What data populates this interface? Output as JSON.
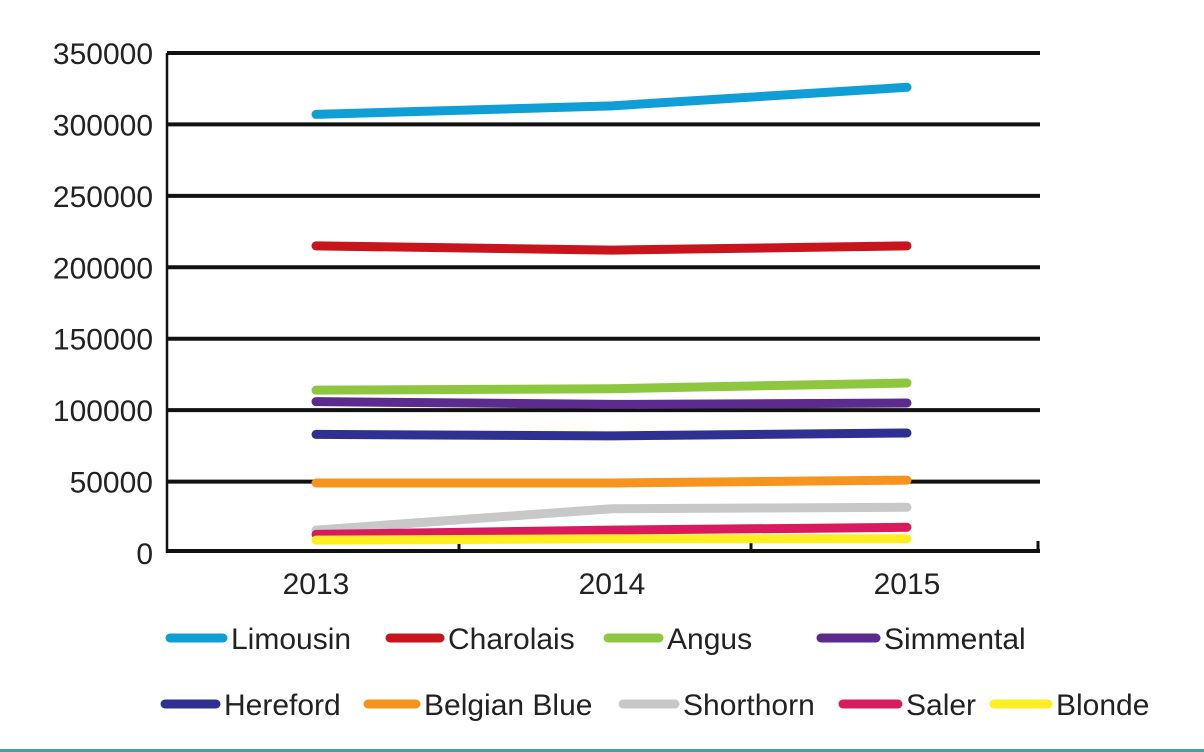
{
  "chart_data": {
    "type": "line",
    "title": "",
    "xlabel": "",
    "ylabel": "",
    "categories": [
      "2013",
      "2014",
      "2015"
    ],
    "ylim": [
      0,
      350000
    ],
    "yticks": [
      "0",
      "50000",
      "100000",
      "150000",
      "200000",
      "250000",
      "300000",
      "350000"
    ],
    "grid": true,
    "legend_position": "bottom",
    "series": [
      {
        "name": "Limousin",
        "color": "#0f9ed5",
        "values": [
          307000,
          313000,
          326000
        ]
      },
      {
        "name": "Charolais",
        "color": "#c8141d",
        "values": [
          215000,
          212000,
          215000
        ]
      },
      {
        "name": "Angus",
        "color": "#8dc63f",
        "values": [
          114000,
          115000,
          119000
        ]
      },
      {
        "name": "Simmental",
        "color": "#5b2c8e",
        "values": [
          106000,
          104000,
          105000
        ]
      },
      {
        "name": "Hereford",
        "color": "#2e3192",
        "values": [
          83000,
          82000,
          84000
        ]
      },
      {
        "name": "Belgian Blue",
        "color": "#f7941d",
        "values": [
          49000,
          49000,
          51000
        ]
      },
      {
        "name": "Shorthorn",
        "color": "#c8c8c8",
        "values": [
          16000,
          31000,
          32000
        ]
      },
      {
        "name": "Saler",
        "color": "#d91a5d",
        "values": [
          13000,
          16000,
          18000
        ]
      },
      {
        "name": "Blonde",
        "color": "#ffee22",
        "values": [
          9000,
          10000,
          10000
        ]
      }
    ]
  }
}
